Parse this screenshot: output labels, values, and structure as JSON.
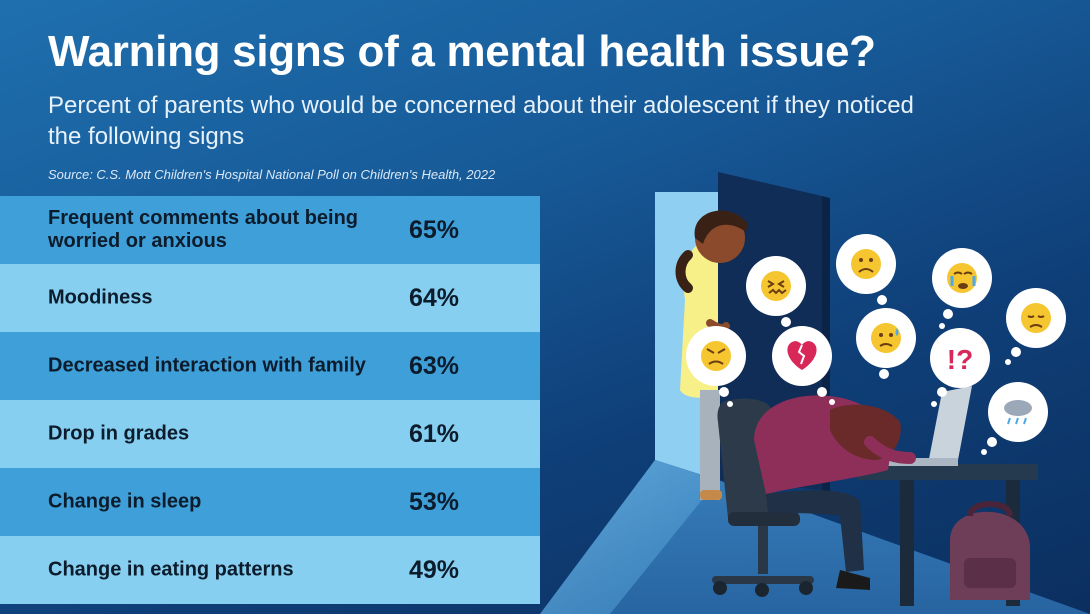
{
  "header": {
    "title": "Warning signs of a mental health issue?",
    "subtitle": "Percent of parents who would be concerned about their adolescent if they noticed the following signs",
    "source": "Source: C.S. Mott Children's Hospital National Poll on Children's Health, 2022"
  },
  "chart_data": {
    "type": "table",
    "categories": [
      "Frequent comments about being worried or anxious",
      "Moodiness",
      "Decreased interaction with family",
      "Drop in grades",
      "Change in sleep",
      "Change in eating patterns"
    ],
    "values": [
      65,
      64,
      63,
      61,
      53,
      49
    ],
    "value_labels": [
      "65%",
      "64%",
      "63%",
      "61%",
      "53%",
      "49%"
    ],
    "title": "Warning signs of a mental health issue?",
    "subtitle": "Percent of parents who would be concerned about their adolescent if they noticed the following signs",
    "source": "Source: C.S. Mott Children's Hospital National Poll on Children's Health, 2022"
  },
  "illustration": {
    "thought_bubbles": [
      "confounded-face-icon",
      "frowning-face-icon",
      "crying-face-icon",
      "sad-face-icon",
      "angry-face-icon",
      "broken-heart-icon",
      "worried-sweat-face-icon",
      "exclamation-question-icon",
      "rain-cloud-icon"
    ],
    "colors": {
      "row_dark": "#3f9fd8",
      "row_light": "#86cff0",
      "background": "#175a98"
    }
  }
}
